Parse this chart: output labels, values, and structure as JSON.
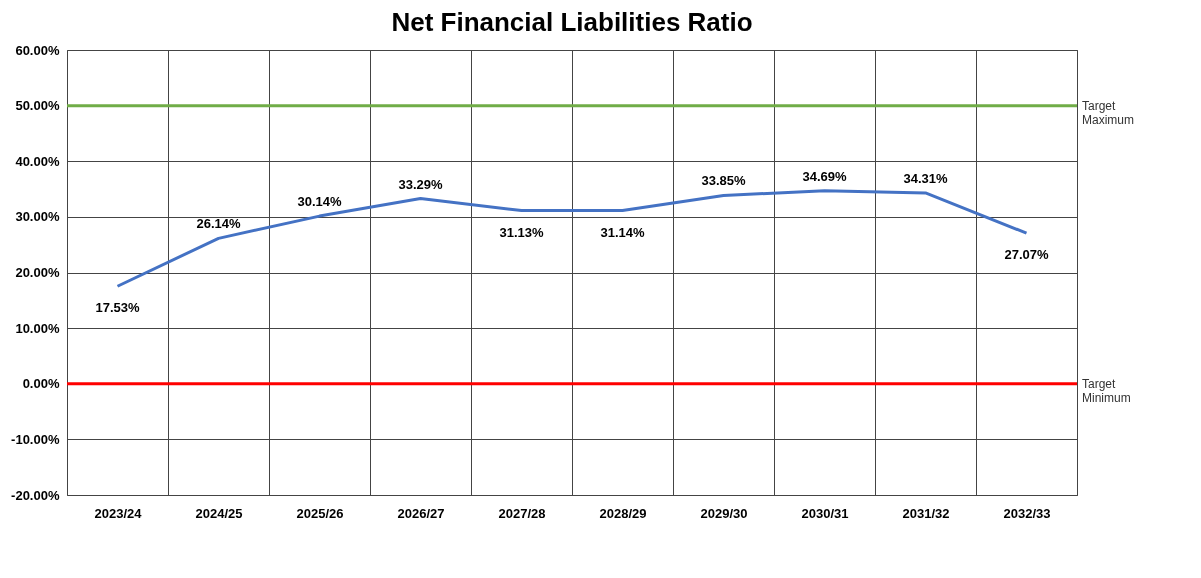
{
  "chart_data": {
    "type": "line",
    "title": "Net Financial Liabilities Ratio",
    "categories": [
      "2023/24",
      "2024/25",
      "2025/26",
      "2026/27",
      "2027/28",
      "2028/29",
      "2029/30",
      "2030/31",
      "2031/32",
      "2032/33"
    ],
    "series": [
      {
        "color": "#4472c4",
        "values": [
          17.53,
          26.14,
          30.14,
          33.29,
          31.13,
          31.14,
          33.85,
          34.69,
          34.31,
          27.07
        ],
        "value_labels": [
          "17.53%",
          "26.14%",
          "30.14%",
          "33.29%",
          "31.13%",
          "31.14%",
          "33.85%",
          "34.69%",
          "34.31%",
          "27.07%"
        ]
      }
    ],
    "ylim": [
      -20,
      60
    ],
    "yticks": [
      {
        "value": -20,
        "label": "-20.00%"
      },
      {
        "value": -10,
        "label": "-10.00%"
      },
      {
        "value": 0,
        "label": "0.00%"
      },
      {
        "value": 10,
        "label": "10.00%"
      },
      {
        "value": 20,
        "label": "20.00%"
      },
      {
        "value": 30,
        "label": "30.00%"
      },
      {
        "value": 40,
        "label": "40.00%"
      },
      {
        "value": 50,
        "label": "50.00%"
      },
      {
        "value": 60,
        "label": "60.00%"
      }
    ],
    "ref_lines": [
      {
        "axis": "y",
        "value": 50,
        "label": "Target Maximum",
        "color": "#70ad47"
      },
      {
        "axis": "y",
        "value": 0,
        "label": "Target Minimum",
        "color": "#ff0000"
      }
    ],
    "grid": true,
    "marker": "none",
    "line_style": "solid"
  }
}
